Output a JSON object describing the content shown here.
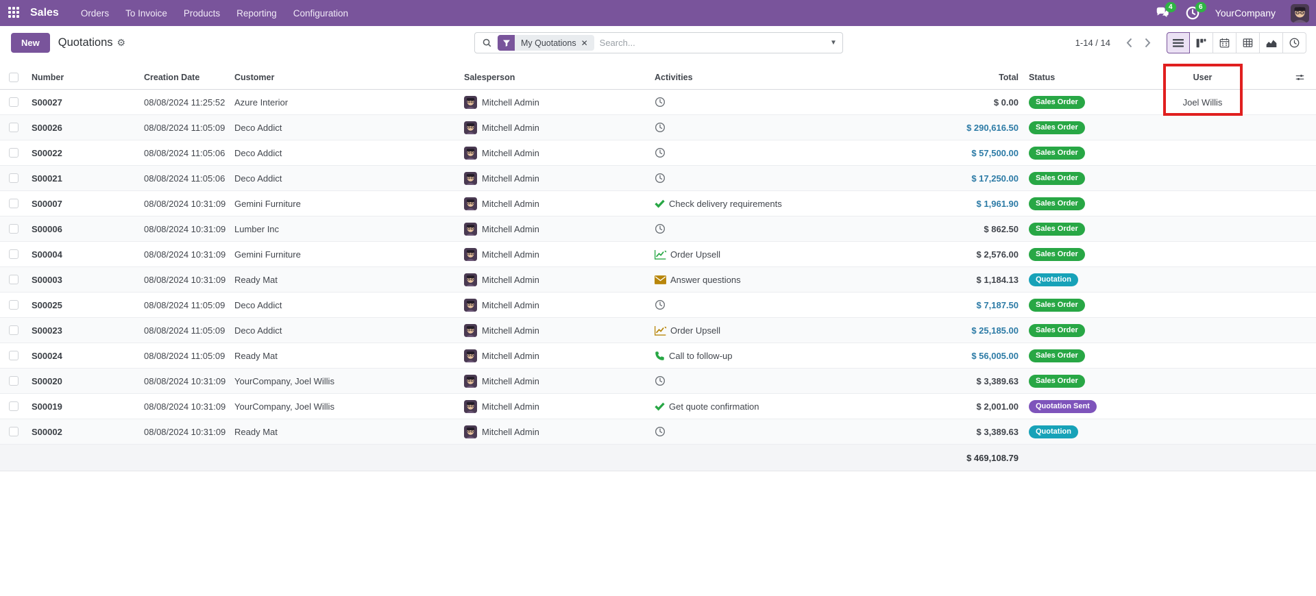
{
  "colors": {
    "brand_purple": "#79549b",
    "monetary_blue": "#2d7ba6",
    "badge_success": "#28a745",
    "badge_info": "#17a2b8",
    "badge_primary": "#7e54bb",
    "highlight_red": "#e01f1f",
    "count_badge_green": "#2fb344"
  },
  "topbar": {
    "app_name": "Sales",
    "menus": [
      {
        "id": "orders",
        "label": "Orders"
      },
      {
        "id": "to-invoice",
        "label": "To Invoice"
      },
      {
        "id": "products",
        "label": "Products"
      },
      {
        "id": "reporting",
        "label": "Reporting"
      },
      {
        "id": "configuration",
        "label": "Configuration"
      }
    ],
    "messages_count": "4",
    "activities_count": "6",
    "company": "YourCompany"
  },
  "control_panel": {
    "new_button": "New",
    "title": "Quotations",
    "search": {
      "facet_label": "My Quotations",
      "placeholder": "Search...",
      "facet_remove": "✕",
      "caret": "▼"
    },
    "pager": {
      "text": "1-14 / 14",
      "prev": "‹",
      "next": "›"
    },
    "view_switcher": [
      {
        "id": "list",
        "active": true
      },
      {
        "id": "kanban",
        "active": false
      },
      {
        "id": "calendar",
        "active": false
      },
      {
        "id": "pivot",
        "active": false
      },
      {
        "id": "graph",
        "active": false
      },
      {
        "id": "activity",
        "active": false
      }
    ]
  },
  "table": {
    "columns": [
      "Number",
      "Creation Date",
      "Customer",
      "Salesperson",
      "Activities",
      "Total",
      "Status",
      "User"
    ],
    "rows": [
      {
        "number": "S00027",
        "date": "08/08/2024 11:25:52",
        "customer": "Azure Interior",
        "salesperson": "Mitchell Admin",
        "activity": {
          "icon": "clock",
          "label": "",
          "color": ""
        },
        "total": "$ 0.00",
        "total_style": "dark",
        "status": "Sales Order",
        "status_style": "success",
        "user": "Joel Willis"
      },
      {
        "number": "S00026",
        "date": "08/08/2024 11:05:09",
        "customer": "Deco Addict",
        "salesperson": "Mitchell Admin",
        "activity": {
          "icon": "clock",
          "label": "",
          "color": ""
        },
        "total": "$ 290,616.50",
        "total_style": "blue",
        "status": "Sales Order",
        "status_style": "success",
        "user": ""
      },
      {
        "number": "S00022",
        "date": "08/08/2024 11:05:06",
        "customer": "Deco Addict",
        "salesperson": "Mitchell Admin",
        "activity": {
          "icon": "clock",
          "label": "",
          "color": ""
        },
        "total": "$ 57,500.00",
        "total_style": "blue",
        "status": "Sales Order",
        "status_style": "success",
        "user": ""
      },
      {
        "number": "S00021",
        "date": "08/08/2024 11:05:06",
        "customer": "Deco Addict",
        "salesperson": "Mitchell Admin",
        "activity": {
          "icon": "clock",
          "label": "",
          "color": ""
        },
        "total": "$ 17,250.00",
        "total_style": "blue",
        "status": "Sales Order",
        "status_style": "success",
        "user": ""
      },
      {
        "number": "S00007",
        "date": "08/08/2024 10:31:09",
        "customer": "Gemini Furniture",
        "salesperson": "Mitchell Admin",
        "activity": {
          "icon": "check",
          "label": "Check delivery requirements",
          "color": "green"
        },
        "total": "$ 1,961.90",
        "total_style": "blue",
        "status": "Sales Order",
        "status_style": "success",
        "user": ""
      },
      {
        "number": "S00006",
        "date": "08/08/2024 10:31:09",
        "customer": "Lumber Inc",
        "salesperson": "Mitchell Admin",
        "activity": {
          "icon": "clock",
          "label": "",
          "color": ""
        },
        "total": "$ 862.50",
        "total_style": "dark",
        "status": "Sales Order",
        "status_style": "success",
        "user": ""
      },
      {
        "number": "S00004",
        "date": "08/08/2024 10:31:09",
        "customer": "Gemini Furniture",
        "salesperson": "Mitchell Admin",
        "activity": {
          "icon": "chart",
          "label": "Order Upsell",
          "color": "green"
        },
        "total": "$ 2,576.00",
        "total_style": "dark",
        "status": "Sales Order",
        "status_style": "success",
        "user": ""
      },
      {
        "number": "S00003",
        "date": "08/08/2024 10:31:09",
        "customer": "Ready Mat",
        "salesperson": "Mitchell Admin",
        "activity": {
          "icon": "envelope",
          "label": "Answer questions",
          "color": "amber"
        },
        "total": "$ 1,184.13",
        "total_style": "dark",
        "status": "Quotation",
        "status_style": "info",
        "user": ""
      },
      {
        "number": "S00025",
        "date": "08/08/2024 11:05:09",
        "customer": "Deco Addict",
        "salesperson": "Mitchell Admin",
        "activity": {
          "icon": "clock",
          "label": "",
          "color": ""
        },
        "total": "$ 7,187.50",
        "total_style": "blue",
        "status": "Sales Order",
        "status_style": "success",
        "user": ""
      },
      {
        "number": "S00023",
        "date": "08/08/2024 11:05:09",
        "customer": "Deco Addict",
        "salesperson": "Mitchell Admin",
        "activity": {
          "icon": "chart",
          "label": "Order Upsell",
          "color": "amber"
        },
        "total": "$ 25,185.00",
        "total_style": "blue",
        "status": "Sales Order",
        "status_style": "success",
        "user": ""
      },
      {
        "number": "S00024",
        "date": "08/08/2024 11:05:09",
        "customer": "Ready Mat",
        "salesperson": "Mitchell Admin",
        "activity": {
          "icon": "phone",
          "label": "Call to follow-up",
          "color": "green"
        },
        "total": "$ 56,005.00",
        "total_style": "blue",
        "status": "Sales Order",
        "status_style": "success",
        "user": ""
      },
      {
        "number": "S00020",
        "date": "08/08/2024 10:31:09",
        "customer": "YourCompany, Joel Willis",
        "salesperson": "Mitchell Admin",
        "activity": {
          "icon": "clock",
          "label": "",
          "color": ""
        },
        "total": "$ 3,389.63",
        "total_style": "dark",
        "status": "Sales Order",
        "status_style": "success",
        "user": ""
      },
      {
        "number": "S00019",
        "date": "08/08/2024 10:31:09",
        "customer": "YourCompany, Joel Willis",
        "salesperson": "Mitchell Admin",
        "activity": {
          "icon": "check",
          "label": "Get quote confirmation",
          "color": "green"
        },
        "total": "$ 2,001.00",
        "total_style": "dark",
        "status": "Quotation Sent",
        "status_style": "primary",
        "user": ""
      },
      {
        "number": "S00002",
        "date": "08/08/2024 10:31:09",
        "customer": "Ready Mat",
        "salesperson": "Mitchell Admin",
        "activity": {
          "icon": "clock",
          "label": "",
          "color": ""
        },
        "total": "$ 3,389.63",
        "total_style": "dark",
        "status": "Quotation",
        "status_style": "info",
        "user": ""
      }
    ],
    "footer_total": "$ 469,108.79"
  }
}
